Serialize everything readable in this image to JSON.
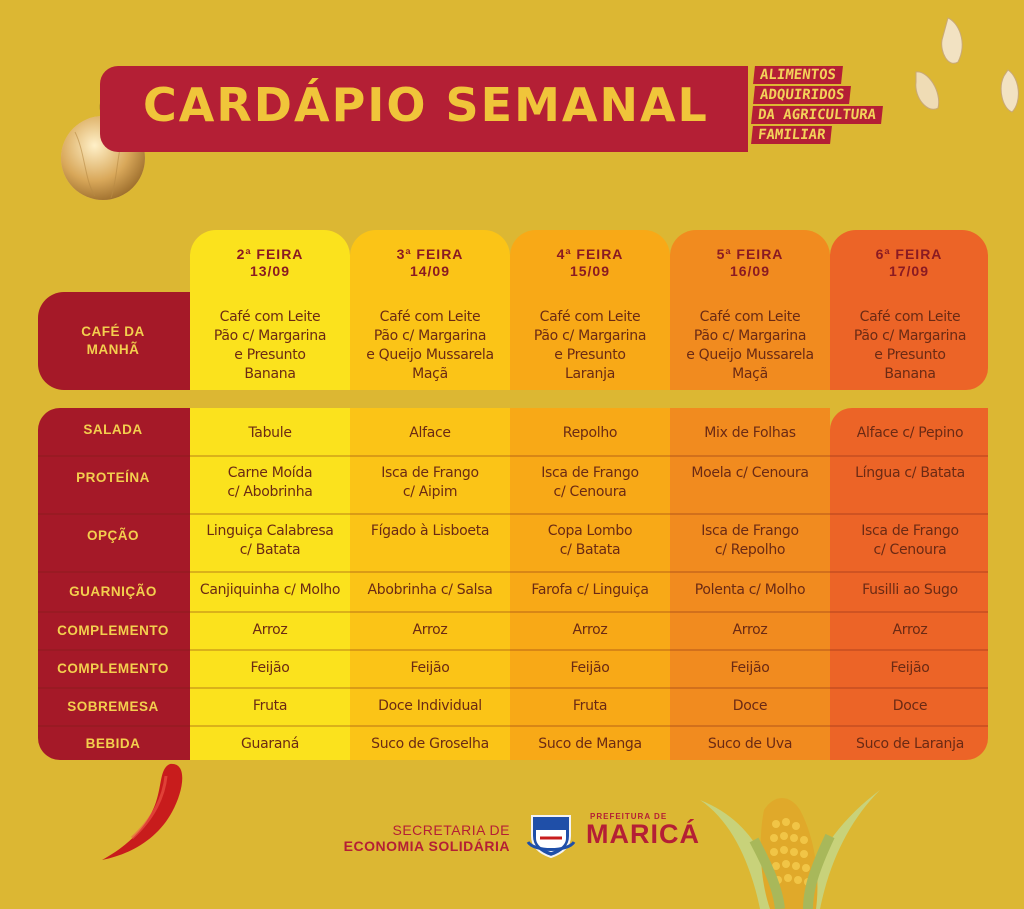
{
  "header": {
    "title": "CARDÁPIO SEMANAL",
    "tagline": [
      "ALIMENTOS",
      "ADQUIRIDOS",
      "DA AGRICULTURA",
      "FAMILIAR"
    ]
  },
  "days": [
    {
      "name": "2ª FEIRA",
      "date": "13/09",
      "color": "#fbe21d"
    },
    {
      "name": "3ª FEIRA",
      "date": "14/09",
      "color": "#fbc417"
    },
    {
      "name": "4ª FEIRA",
      "date": "15/09",
      "color": "#f8a917"
    },
    {
      "name": "5ª FEIRA",
      "date": "16/09",
      "color": "#f18b1f"
    },
    {
      "name": "6ª FEIRA",
      "date": "17/09",
      "color": "#ec6427"
    }
  ],
  "breakfast": {
    "label": [
      "CAFÉ DA",
      "MANHÃ"
    ],
    "items": [
      [
        "Café com Leite",
        "Pão c/ Margarina",
        "e Presunto",
        "Banana"
      ],
      [
        "Café com Leite",
        "Pão c/ Margarina",
        "e Queijo Mussarela",
        "Maçã"
      ],
      [
        "Café com Leite",
        "Pão c/ Margarina",
        "e Presunto",
        "Laranja"
      ],
      [
        "Café com Leite",
        "Pão c/ Margarina",
        "e Queijo Mussarela",
        "Maçã"
      ],
      [
        "Café com Leite",
        "Pão c/ Margarina",
        "e Presunto",
        "Banana"
      ]
    ]
  },
  "lunch": [
    {
      "label": "SALADA",
      "items": [
        [
          "Tabule"
        ],
        [
          "Alface"
        ],
        [
          "Repolho"
        ],
        [
          "Mix de Folhas"
        ],
        [
          "Alface c/ Pepino"
        ]
      ]
    },
    {
      "label": "PROTEÍNA",
      "items": [
        [
          "Carne Moída",
          "c/ Abobrinha"
        ],
        [
          "Isca de Frango",
          "c/ Aipim"
        ],
        [
          "Isca de Frango",
          "c/ Cenoura"
        ],
        [
          "Moela c/ Cenoura"
        ],
        [
          "Língua c/ Batata"
        ]
      ]
    },
    {
      "label": "OPÇÃO",
      "items": [
        [
          "Linguiça Calabresa",
          "c/ Batata"
        ],
        [
          "Fígado à Lisboeta"
        ],
        [
          "Copa Lombo",
          "c/ Batata"
        ],
        [
          "Isca de Frango",
          "c/ Repolho"
        ],
        [
          "Isca de Frango",
          "c/ Cenoura"
        ]
      ]
    },
    {
      "label": "GUARNIÇÃO",
      "items": [
        [
          "Canjiquinha c/ Molho"
        ],
        [
          "Abobrinha c/ Salsa"
        ],
        [
          "Farofa c/ Linguiça"
        ],
        [
          "Polenta c/ Molho"
        ],
        [
          "Fusilli ao Sugo"
        ]
      ]
    },
    {
      "label": "COMPLEMENTO",
      "items": [
        [
          "Arroz"
        ],
        [
          "Arroz"
        ],
        [
          "Arroz"
        ],
        [
          "Arroz"
        ],
        [
          "Arroz"
        ]
      ]
    },
    {
      "label": "COMPLEMENTO",
      "items": [
        [
          "Feijão"
        ],
        [
          "Feijão"
        ],
        [
          "Feijão"
        ],
        [
          "Feijão"
        ],
        [
          "Feijão"
        ]
      ]
    },
    {
      "label": "SOBREMESA",
      "items": [
        [
          "Fruta"
        ],
        [
          "Doce Individual"
        ],
        [
          "Fruta"
        ],
        [
          "Doce"
        ],
        [
          "Doce"
        ]
      ]
    },
    {
      "label": "BEBIDA",
      "items": [
        [
          "Guaraná"
        ],
        [
          "Suco de Groselha"
        ],
        [
          "Suco de Manga"
        ],
        [
          "Suco de Uva"
        ],
        [
          "Suco de Laranja"
        ]
      ]
    }
  ],
  "footer": {
    "secretaria_line1": "SECRETARIA DE",
    "secretaria_line2": "ECONOMIA SOLIDÁRIA",
    "prefeitura_small": "PREFEITURA DE",
    "prefeitura_big": "MARICÁ"
  },
  "colors": {
    "background": "#dcb733",
    "label_red": "#a51928",
    "banner_red": "#b41f35",
    "title_yellow": "#f0c53a"
  }
}
